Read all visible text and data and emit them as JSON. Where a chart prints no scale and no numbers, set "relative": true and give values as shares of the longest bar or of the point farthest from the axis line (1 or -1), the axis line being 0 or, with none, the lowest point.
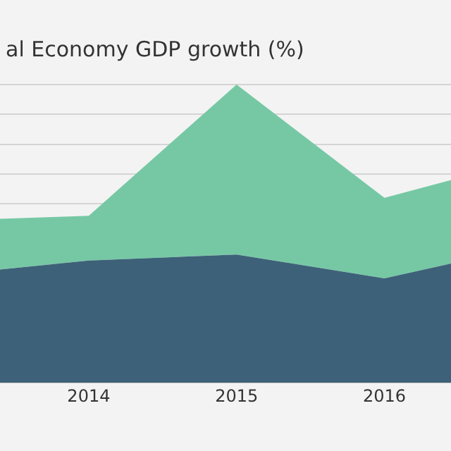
{
  "chart_data": {
    "type": "area",
    "title": "al Economy GDP growth (%)",
    "stacked": true,
    "relative": true,
    "grid": "y",
    "legend": false,
    "x": [
      2013.4,
      2014,
      2015,
      2016,
      2016.45
    ],
    "xlim": [
      2013.4,
      2016.45
    ],
    "xticks": [
      2014,
      2015,
      2016
    ],
    "series": [
      {
        "color": "#3d6178",
        "values": [
          0.38,
          0.41,
          0.43,
          0.35,
          0.4
        ]
      },
      {
        "color": "#76c8a5",
        "values": [
          0.17,
          0.15,
          0.57,
          0.27,
          0.28
        ]
      }
    ]
  }
}
